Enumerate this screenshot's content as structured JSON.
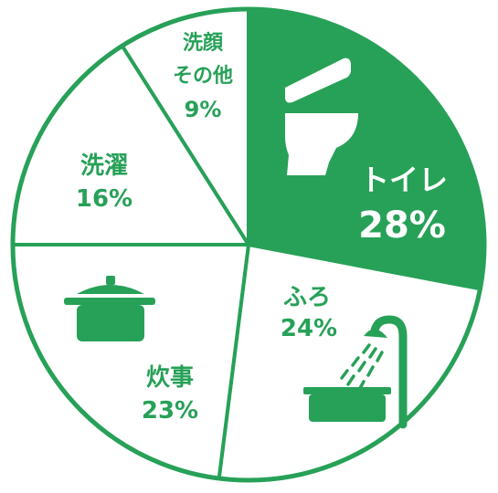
{
  "chart_data": {
    "type": "pie",
    "slices": [
      {
        "label": "トイレ",
        "value": 28,
        "value_label": "28%",
        "filled": true,
        "icon": "toilet-icon"
      },
      {
        "label": "ふろ",
        "value": 24,
        "value_label": "24%",
        "filled": false,
        "icon": "shower-bath-icon"
      },
      {
        "label": "炊事",
        "value": 23,
        "value_label": "23%",
        "filled": false,
        "icon": "cooking-pot-icon"
      },
      {
        "label": "洗濯",
        "value": 16,
        "value_label": "16%",
        "filled": false
      },
      {
        "label_lines": [
          "洗顔",
          "その他"
        ],
        "value": 9,
        "value_label": "9%",
        "filled": false
      }
    ],
    "start": "top, clockwise"
  },
  "colors": {
    "accent": "#27a158",
    "background": "#ffffff",
    "label_on_fill": "#ffffff"
  }
}
